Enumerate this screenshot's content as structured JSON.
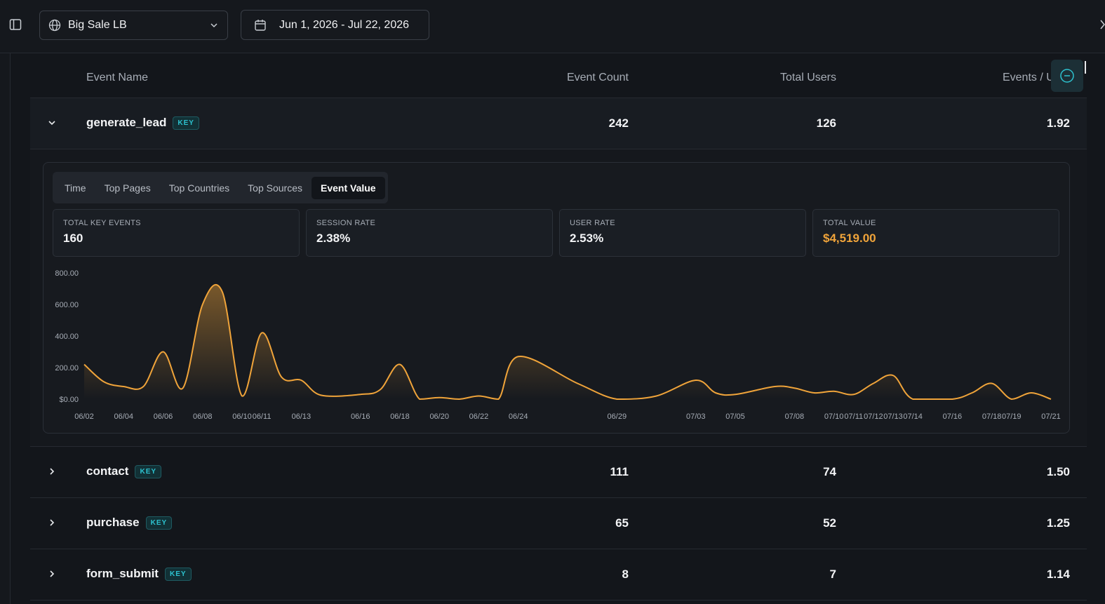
{
  "topbar": {
    "site_name": "Big Sale LB",
    "date_range": "Jun 1, 2026 - Jul 22, 2026"
  },
  "table": {
    "headers": {
      "name": "Event Name",
      "count": "Event Count",
      "users": "Total Users",
      "epu": "Events / User"
    },
    "rows": [
      {
        "name": "generate_lead",
        "badge": "KEY",
        "count": "242",
        "users": "126",
        "epu": "1.92",
        "expanded": true
      },
      {
        "name": "contact",
        "badge": "KEY",
        "count": "111",
        "users": "74",
        "epu": "1.50",
        "expanded": false
      },
      {
        "name": "purchase",
        "badge": "KEY",
        "count": "65",
        "users": "52",
        "epu": "1.25",
        "expanded": false
      },
      {
        "name": "form_submit",
        "badge": "KEY",
        "count": "8",
        "users": "7",
        "epu": "1.14",
        "expanded": false
      }
    ]
  },
  "detail": {
    "tabs": [
      "Time",
      "Top Pages",
      "Top Countries",
      "Top Sources",
      "Event Value"
    ],
    "active_tab": "Event Value",
    "metrics": [
      {
        "label": "TOTAL KEY EVENTS",
        "value": "160"
      },
      {
        "label": "SESSION RATE",
        "value": "2.38%"
      },
      {
        "label": "USER RATE",
        "value": "2.53%"
      },
      {
        "label": "TOTAL VALUE",
        "value": "$4,519.00"
      }
    ]
  },
  "colors": {
    "accent": "#f0a43a",
    "key_badge": "#2dc2cf",
    "background": "#13161b"
  },
  "chart_data": {
    "type": "area",
    "y_tick_labels": [
      "$0.00",
      "200.00",
      "400.00",
      "600.00",
      "800.00"
    ],
    "ylim": [
      0,
      800
    ],
    "x_tick_labels": [
      "06/02",
      "06/04",
      "06/06",
      "06/08",
      "06/10",
      "06/11",
      "06/13",
      "06/16",
      "06/18",
      "06/20",
      "06/22",
      "06/24",
      "06/29",
      "07/03",
      "07/05",
      "07/08",
      "07/10",
      "07/11",
      "07/12",
      "07/13",
      "07/14",
      "07/16",
      "07/18",
      "07/19",
      "07/21"
    ],
    "x": [
      "06/02",
      "06/03",
      "06/04",
      "06/05",
      "06/06",
      "06/07",
      "06/08",
      "06/09",
      "06/10",
      "06/11",
      "06/12",
      "06/13",
      "06/14",
      "06/16",
      "06/17",
      "06/18",
      "06/19",
      "06/20",
      "06/21",
      "06/22",
      "06/23",
      "06/24",
      "06/27",
      "06/29",
      "07/01",
      "07/03",
      "07/04",
      "07/05",
      "07/07",
      "07/08",
      "07/09",
      "07/10",
      "07/11",
      "07/12",
      "07/13",
      "07/14",
      "07/16",
      "07/17",
      "07/18",
      "07/19",
      "07/20",
      "07/21"
    ],
    "series": [
      {
        "values": [
          220,
          110,
          80,
          80,
          300,
          70,
          600,
          680,
          20,
          420,
          140,
          120,
          25,
          30,
          60,
          220,
          0,
          10,
          0,
          20,
          0,
          270,
          100,
          0,
          20,
          120,
          40,
          30,
          80,
          70,
          40,
          50,
          30,
          100,
          150,
          0,
          0,
          40,
          100,
          0,
          40,
          0
        ]
      }
    ],
    "grid": false,
    "legend": "none"
  }
}
